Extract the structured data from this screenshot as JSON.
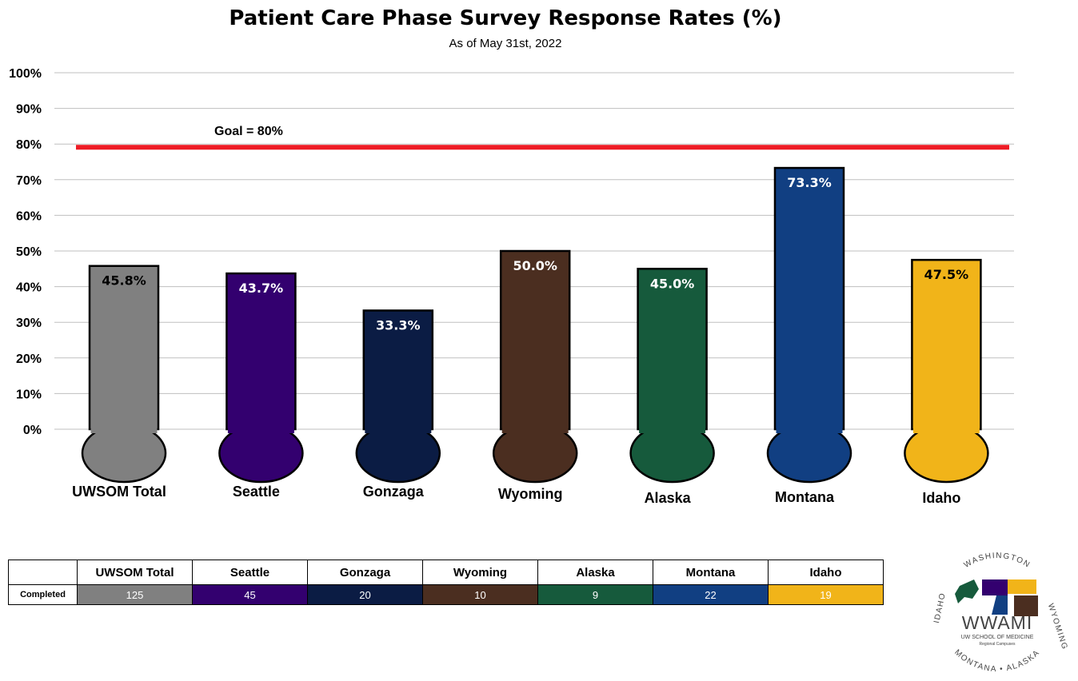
{
  "chart_data": {
    "type": "bar",
    "title": "Patient Care Phase Survey Response Rates (%)",
    "subtitle": "As of May 31st, 2022",
    "categories": [
      "UWSOM Total",
      "Seattle",
      "Gonzaga",
      "Wyoming",
      "Alaska",
      "Montana",
      "Idaho"
    ],
    "values": [
      45.8,
      43.7,
      33.3,
      50.0,
      45.0,
      73.3,
      47.5
    ],
    "data_labels": [
      "45.8%",
      "43.7%",
      "33.3%",
      "50.0%",
      "45.0%",
      "73.3%",
      "47.5%"
    ],
    "colors": [
      "#808080",
      "#33006f",
      "#0b1c44",
      "#4b2e20",
      "#165a3c",
      "#113f82",
      "#f1b419"
    ],
    "label_colors": [
      "#000000",
      "#ffffff",
      "#ffffff",
      "#ffffff",
      "#ffffff",
      "#ffffff",
      "#000000"
    ],
    "ylim": [
      0,
      100
    ],
    "y_ticks": [
      "0%",
      "10%",
      "20%",
      "30%",
      "40%",
      "50%",
      "60%",
      "70%",
      "80%",
      "90%",
      "100%"
    ],
    "grid": true,
    "goal": {
      "value": 80,
      "label": "Goal = 80%",
      "color": "#ee1c25"
    }
  },
  "table": {
    "row_label": "Completed",
    "headers": [
      "UWSOM Total",
      "Seattle",
      "Gonzaga",
      "Wyoming",
      "Alaska",
      "Montana",
      "Idaho"
    ],
    "values": [
      "125",
      "45",
      "20",
      "10",
      "9",
      "22",
      "19"
    ]
  },
  "logo": {
    "text": "WWAMI",
    "subtext": "UW SCHOOL OF MEDICINE",
    "subtext2": "Regional Campuses",
    "ring": [
      "WASHINGTON",
      "WYOMING",
      "ALASKA",
      "MONTANA",
      "IDAHO"
    ]
  }
}
